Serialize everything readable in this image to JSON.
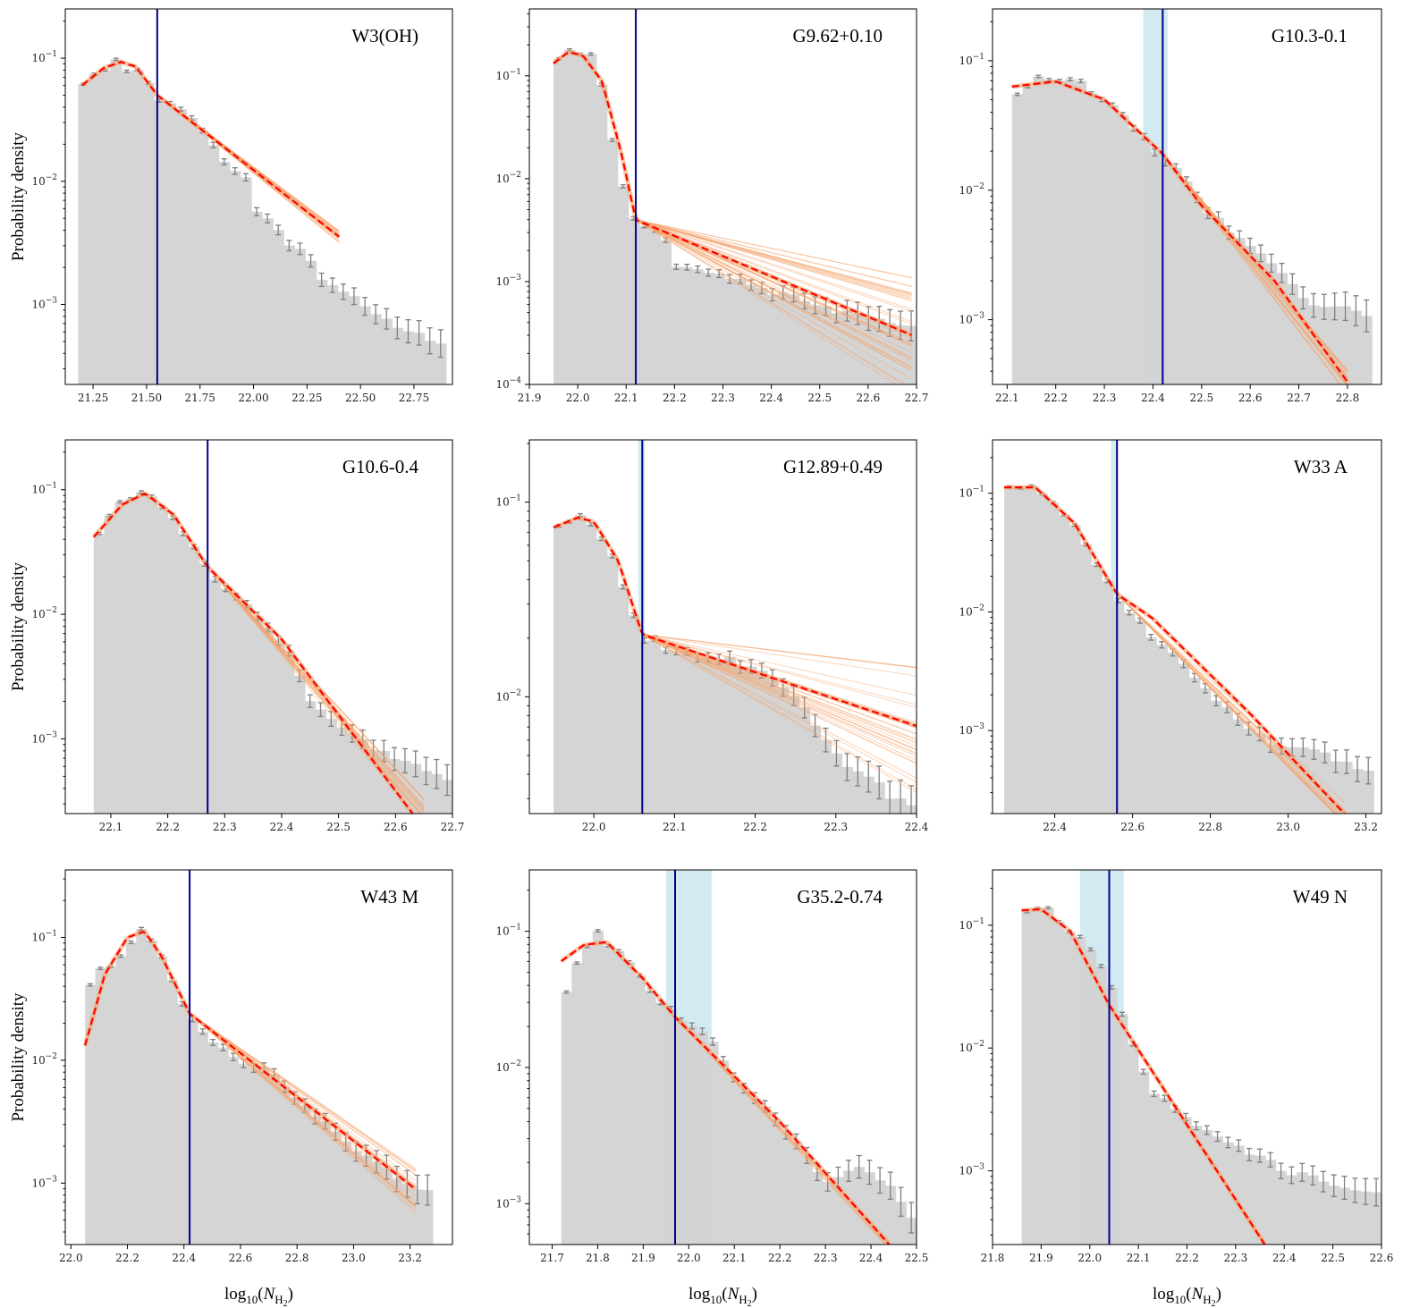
{
  "figure": {
    "ylabel": "Probability density",
    "xlabel_prefix": "log",
    "xlabel_sub": "10",
    "xlabel_var": "N",
    "xlabel_varsub": "H",
    "xlabel_varsub2": "2"
  },
  "colors": {
    "hist": "#d3d3d3",
    "errorbar": "#7f7f7f",
    "fit": "#ff0000",
    "samples": "#f5a36b",
    "transition": "#00008b",
    "transition_band": "#add8e6"
  },
  "chart_data": [
    {
      "type": "bar",
      "title": "W3(OH)",
      "xlim": [
        21.12,
        22.93
      ],
      "ylim_log": [
        -3.65,
        -0.6
      ],
      "xticks": [
        21.25,
        21.5,
        21.75,
        22.0,
        22.25,
        22.5,
        22.75
      ],
      "xtick_labels": [
        "21.25",
        "21.50",
        "21.75",
        "22.00",
        "22.25",
        "22.50",
        "22.75"
      ],
      "yticks_exp": [
        -3,
        -2,
        -1
      ],
      "hist_range": [
        21.18,
        22.9
      ],
      "hist_nodes": [
        [
          21.18,
          -1.24
        ],
        [
          21.25,
          -1.1
        ],
        [
          21.35,
          -1.03
        ],
        [
          21.45,
          -1.1
        ],
        [
          21.55,
          -1.3
        ],
        [
          21.65,
          -1.38
        ],
        [
          21.75,
          -1.6
        ],
        [
          21.85,
          -1.82
        ],
        [
          21.95,
          -1.92
        ],
        [
          22.0,
          -2.22
        ],
        [
          22.1,
          -2.38
        ],
        [
          22.2,
          -2.55
        ],
        [
          22.3,
          -2.75
        ],
        [
          22.45,
          -2.95
        ],
        [
          22.6,
          -3.1
        ],
        [
          22.75,
          -3.25
        ],
        [
          22.9,
          -3.3
        ]
      ],
      "hist_noise": 0.08,
      "err_scale": 1.0,
      "fit_nodes": [
        [
          21.2,
          -1.22
        ],
        [
          21.3,
          -1.08
        ],
        [
          21.38,
          -1.03
        ],
        [
          21.45,
          -1.07
        ],
        [
          21.55,
          -1.3
        ],
        [
          22.4,
          -2.45
        ]
      ],
      "fit_range": [
        21.2,
        22.4
      ],
      "transition": 21.55,
      "band": null,
      "samples": {
        "x0": 21.55,
        "x1": 22.4,
        "spread": 0.05,
        "n": 18
      }
    },
    {
      "type": "bar",
      "title": "G9.62+0.10",
      "xlim": [
        21.9,
        22.7
      ],
      "ylim_log": [
        -4.0,
        -0.35
      ],
      "xticks": [
        21.9,
        22.0,
        22.1,
        22.2,
        22.3,
        22.4,
        22.5,
        22.6,
        22.7
      ],
      "xtick_labels": [
        "21.9",
        "22.0",
        "22.1",
        "22.2",
        "22.3",
        "22.4",
        "22.5",
        "22.6",
        "22.7"
      ],
      "yticks_exp": [
        -4,
        -3,
        -2,
        -1
      ],
      "hist_range": [
        21.95,
        22.7
      ],
      "hist_nodes": [
        [
          21.95,
          -0.92
        ],
        [
          21.97,
          -0.78
        ],
        [
          22.0,
          -0.74
        ],
        [
          22.04,
          -0.86
        ],
        [
          22.06,
          -1.3
        ],
        [
          22.08,
          -1.85
        ],
        [
          22.1,
          -2.22
        ],
        [
          22.12,
          -2.4
        ],
        [
          22.18,
          -2.55
        ],
        [
          22.2,
          -2.82
        ],
        [
          22.3,
          -2.92
        ],
        [
          22.4,
          -3.1
        ],
        [
          22.55,
          -3.3
        ],
        [
          22.7,
          -3.45
        ]
      ],
      "hist_noise": 0.07,
      "err_scale": 1.3,
      "fit_nodes": [
        [
          21.95,
          -0.88
        ],
        [
          21.98,
          -0.77
        ],
        [
          22.01,
          -0.8
        ],
        [
          22.05,
          -1.05
        ],
        [
          22.09,
          -1.75
        ],
        [
          22.12,
          -2.4
        ],
        [
          22.69,
          -3.52
        ]
      ],
      "fit_range": [
        21.95,
        22.69
      ],
      "transition": 22.12,
      "band": null,
      "samples": {
        "x0": 22.12,
        "x1": 22.69,
        "spread": 0.6,
        "n": 40
      }
    },
    {
      "type": "bar",
      "title": "G10.3-0.1",
      "xlim": [
        22.07,
        22.87
      ],
      "ylim_log": [
        -3.5,
        -0.6
      ],
      "xticks": [
        22.1,
        22.2,
        22.3,
        22.4,
        22.5,
        22.6,
        22.7,
        22.8
      ],
      "xtick_labels": [
        "22.1",
        "22.2",
        "22.3",
        "22.4",
        "22.5",
        "22.6",
        "22.7",
        "22.8"
      ],
      "yticks_exp": [
        -3,
        -2,
        -1
      ],
      "hist_range": [
        22.11,
        22.85
      ],
      "hist_nodes": [
        [
          22.11,
          -1.25
        ],
        [
          22.18,
          -1.12
        ],
        [
          22.25,
          -1.18
        ],
        [
          22.3,
          -1.3
        ],
        [
          22.35,
          -1.45
        ],
        [
          22.4,
          -1.68
        ],
        [
          22.45,
          -1.85
        ],
        [
          22.5,
          -2.1
        ],
        [
          22.55,
          -2.3
        ],
        [
          22.6,
          -2.45
        ],
        [
          22.65,
          -2.55
        ],
        [
          22.7,
          -2.8
        ],
        [
          22.75,
          -2.9
        ],
        [
          22.85,
          -2.95
        ]
      ],
      "hist_noise": 0.06,
      "err_scale": 1.1,
      "fit_nodes": [
        [
          22.11,
          -1.2
        ],
        [
          22.2,
          -1.16
        ],
        [
          22.3,
          -1.3
        ],
        [
          22.42,
          -1.72
        ],
        [
          22.5,
          -2.12
        ],
        [
          22.65,
          -2.7
        ],
        [
          22.8,
          -3.48
        ]
      ],
      "fit_range": [
        22.11,
        22.8
      ],
      "transition": 22.42,
      "band": [
        22.38,
        22.43
      ],
      "samples": {
        "x0": 22.42,
        "x1": 22.8,
        "spread": 0.1,
        "n": 18
      }
    },
    {
      "type": "bar",
      "title": "G10.6-0.4",
      "xlim": [
        22.02,
        22.7
      ],
      "ylim_log": [
        -3.6,
        -0.6
      ],
      "xticks": [
        22.1,
        22.2,
        22.3,
        22.4,
        22.5,
        22.6,
        22.7
      ],
      "xtick_labels": [
        "22.1",
        "22.2",
        "22.3",
        "22.4",
        "22.5",
        "22.6",
        "22.7"
      ],
      "yticks_exp": [
        -3,
        -2,
        -1
      ],
      "hist_range": [
        22.07,
        22.7
      ],
      "hist_nodes": [
        [
          22.07,
          -1.4
        ],
        [
          22.12,
          -1.1
        ],
        [
          22.16,
          -1.0
        ],
        [
          22.2,
          -1.15
        ],
        [
          22.25,
          -1.5
        ],
        [
          22.27,
          -1.65
        ],
        [
          22.35,
          -1.95
        ],
        [
          22.42,
          -2.35
        ],
        [
          22.45,
          -2.7
        ],
        [
          22.5,
          -2.9
        ],
        [
          22.55,
          -3.05
        ],
        [
          22.6,
          -3.15
        ],
        [
          22.7,
          -3.35
        ]
      ],
      "hist_noise": 0.06,
      "err_scale": 1.1,
      "fit_nodes": [
        [
          22.07,
          -1.38
        ],
        [
          22.12,
          -1.12
        ],
        [
          22.16,
          -1.03
        ],
        [
          22.21,
          -1.2
        ],
        [
          22.27,
          -1.62
        ],
        [
          22.4,
          -2.2
        ],
        [
          22.63,
          -3.6
        ]
      ],
      "fit_range": [
        22.07,
        22.63
      ],
      "transition": 22.27,
      "band": null,
      "samples": {
        "x0": 22.27,
        "x1": 22.65,
        "spread": 0.12,
        "n": 18
      }
    },
    {
      "type": "bar",
      "title": "G12.89+0.49",
      "xlim": [
        21.92,
        22.4
      ],
      "ylim_log": [
        -2.6,
        -0.68
      ],
      "xticks": [
        22.0,
        22.1,
        22.2,
        22.3,
        22.4
      ],
      "xtick_labels": [
        "22.0",
        "22.1",
        "22.2",
        "22.3",
        "22.4"
      ],
      "yticks_exp": [
        -2,
        -1
      ],
      "hist_range": [
        21.95,
        22.4
      ],
      "hist_nodes": [
        [
          21.95,
          -1.15
        ],
        [
          21.98,
          -1.08
        ],
        [
          22.0,
          -1.12
        ],
        [
          22.03,
          -1.35
        ],
        [
          22.06,
          -1.7
        ],
        [
          22.1,
          -1.75
        ],
        [
          22.2,
          -1.85
        ],
        [
          22.25,
          -2.0
        ],
        [
          22.3,
          -2.3
        ],
        [
          22.35,
          -2.45
        ],
        [
          22.4,
          -2.6
        ]
      ],
      "hist_noise": 0.05,
      "err_scale": 0.9,
      "fit_nodes": [
        [
          21.95,
          -1.13
        ],
        [
          21.98,
          -1.08
        ],
        [
          22.0,
          -1.1
        ],
        [
          22.03,
          -1.3
        ],
        [
          22.06,
          -1.68
        ],
        [
          22.4,
          -2.15
        ]
      ],
      "fit_range": [
        21.95,
        22.4
      ],
      "transition": 22.06,
      "band": [
        22.055,
        22.063
      ],
      "samples": {
        "x0": 22.06,
        "x1": 22.4,
        "spread": 0.35,
        "n": 30
      }
    },
    {
      "type": "bar",
      "title": "W33 A",
      "xlim": [
        22.24,
        23.24
      ],
      "ylim_log": [
        -3.7,
        -0.55
      ],
      "xticks": [
        22.4,
        22.6,
        22.8,
        23.0,
        23.2
      ],
      "xtick_labels": [
        "22.4",
        "22.6",
        "22.8",
        "23.0",
        "23.2"
      ],
      "yticks_exp": [
        -3,
        -2,
        -1
      ],
      "hist_range": [
        22.27,
        23.22
      ],
      "hist_nodes": [
        [
          22.27,
          -0.92
        ],
        [
          22.35,
          -0.96
        ],
        [
          22.45,
          -1.25
        ],
        [
          22.55,
          -1.85
        ],
        [
          22.65,
          -2.2
        ],
        [
          22.75,
          -2.5
        ],
        [
          22.85,
          -2.85
        ],
        [
          22.95,
          -3.1
        ],
        [
          23.05,
          -3.15
        ],
        [
          23.22,
          -3.35
        ]
      ],
      "hist_noise": 0.05,
      "err_scale": 1.0,
      "fit_nodes": [
        [
          22.27,
          -0.95
        ],
        [
          22.35,
          -0.95
        ],
        [
          22.45,
          -1.25
        ],
        [
          22.56,
          -1.85
        ],
        [
          22.65,
          -2.05
        ],
        [
          22.9,
          -2.85
        ],
        [
          23.15,
          -3.72
        ]
      ],
      "fit_range": [
        22.27,
        23.15
      ],
      "transition": 22.56,
      "band": [
        22.545,
        22.56
      ],
      "samples": {
        "x0": 22.56,
        "x1": 23.15,
        "spread": 0.1,
        "n": 16
      }
    },
    {
      "type": "bar",
      "title": "W43 M",
      "xlim": [
        21.98,
        23.35
      ],
      "ylim_log": [
        -3.5,
        -0.45
      ],
      "xticks": [
        22.0,
        22.2,
        22.4,
        22.6,
        22.8,
        23.0,
        23.2
      ],
      "xtick_labels": [
        "22.0",
        "22.2",
        "22.4",
        "22.6",
        "22.8",
        "23.0",
        "23.2"
      ],
      "yticks_exp": [
        -3,
        -2,
        -1
      ],
      "hist_range": [
        22.05,
        23.28
      ],
      "hist_nodes": [
        [
          22.05,
          -1.55
        ],
        [
          22.08,
          -1.28
        ],
        [
          22.15,
          -1.25
        ],
        [
          22.25,
          -0.95
        ],
        [
          22.3,
          -1.05
        ],
        [
          22.42,
          -1.65
        ],
        [
          22.55,
          -1.95
        ],
        [
          22.7,
          -2.1
        ],
        [
          22.85,
          -2.4
        ],
        [
          23.0,
          -2.75
        ],
        [
          23.28,
          -3.1
        ]
      ],
      "hist_noise": 0.06,
      "err_scale": 1.1,
      "fit_nodes": [
        [
          22.05,
          -1.88
        ],
        [
          22.12,
          -1.3
        ],
        [
          22.2,
          -1.0
        ],
        [
          22.26,
          -0.95
        ],
        [
          22.32,
          -1.15
        ],
        [
          22.42,
          -1.62
        ],
        [
          23.22,
          -3.05
        ]
      ],
      "fit_range": [
        22.05,
        23.22
      ],
      "transition": 22.42,
      "band": null,
      "samples": {
        "x0": 22.42,
        "x1": 23.22,
        "spread": 0.2,
        "n": 22
      }
    },
    {
      "type": "bar",
      "title": "G35.2-0.74",
      "xlim": [
        21.65,
        22.5
      ],
      "ylim_log": [
        -3.3,
        -0.55
      ],
      "xticks": [
        21.7,
        21.8,
        21.9,
        22.0,
        22.1,
        22.2,
        22.3,
        22.4,
        22.5
      ],
      "xtick_labels": [
        "21.7",
        "21.8",
        "21.9",
        "22.0",
        "22.1",
        "22.2",
        "22.3",
        "22.4",
        "22.5"
      ],
      "yticks_exp": [
        -3,
        -2,
        -1
      ],
      "hist_range": [
        21.72,
        22.5
      ],
      "hist_nodes": [
        [
          21.72,
          -1.6
        ],
        [
          21.75,
          -1.25
        ],
        [
          21.8,
          -1.02
        ],
        [
          21.85,
          -1.15
        ],
        [
          21.92,
          -1.45
        ],
        [
          21.97,
          -1.62
        ],
        [
          22.05,
          -1.8
        ],
        [
          22.1,
          -2.1
        ],
        [
          22.2,
          -2.4
        ],
        [
          22.3,
          -2.85
        ],
        [
          22.38,
          -2.7
        ],
        [
          22.45,
          -2.9
        ],
        [
          22.5,
          -3.15
        ]
      ],
      "hist_noise": 0.05,
      "err_scale": 1.0,
      "fit_nodes": [
        [
          21.72,
          -1.22
        ],
        [
          21.77,
          -1.1
        ],
        [
          21.82,
          -1.08
        ],
        [
          21.9,
          -1.35
        ],
        [
          21.97,
          -1.63
        ],
        [
          22.2,
          -2.4
        ],
        [
          22.44,
          -3.3
        ]
      ],
      "fit_range": [
        21.72,
        22.44
      ],
      "transition": 21.97,
      "band": [
        21.95,
        22.05
      ],
      "samples": {
        "x0": 21.97,
        "x1": 22.44,
        "spread": 0.04,
        "n": 10
      }
    },
    {
      "type": "bar",
      "title": "W49 N",
      "xlim": [
        21.8,
        22.6
      ],
      "ylim_log": [
        -3.6,
        -0.55
      ],
      "xticks": [
        21.8,
        21.9,
        22.0,
        22.1,
        22.2,
        22.3,
        22.4,
        22.5,
        22.6
      ],
      "xtick_labels": [
        "21.8",
        "21.9",
        "22.0",
        "22.1",
        "22.2",
        "22.3",
        "22.4",
        "22.5",
        "22.6"
      ],
      "yticks_exp": [
        -3,
        -2,
        -1
      ],
      "hist_range": [
        21.86,
        22.6
      ],
      "hist_nodes": [
        [
          21.86,
          -0.9
        ],
        [
          21.9,
          -0.82
        ],
        [
          21.95,
          -1.0
        ],
        [
          22.0,
          -1.2
        ],
        [
          22.04,
          -1.45
        ],
        [
          22.08,
          -1.85
        ],
        [
          22.12,
          -2.3
        ],
        [
          22.2,
          -2.6
        ],
        [
          22.3,
          -2.78
        ],
        [
          22.4,
          -3.0
        ],
        [
          22.6,
          -3.2
        ]
      ],
      "hist_noise": 0.06,
      "err_scale": 1.0,
      "fit_nodes": [
        [
          21.86,
          -0.88
        ],
        [
          21.9,
          -0.87
        ],
        [
          21.96,
          -1.05
        ],
        [
          22.04,
          -1.65
        ],
        [
          22.36,
          -3.6
        ]
      ],
      "fit_range": [
        21.86,
        22.36
      ],
      "transition": 22.04,
      "band": [
        21.98,
        22.07
      ],
      "samples": {
        "x0": 22.04,
        "x1": 22.36,
        "spread": 0.02,
        "n": 6
      }
    }
  ]
}
